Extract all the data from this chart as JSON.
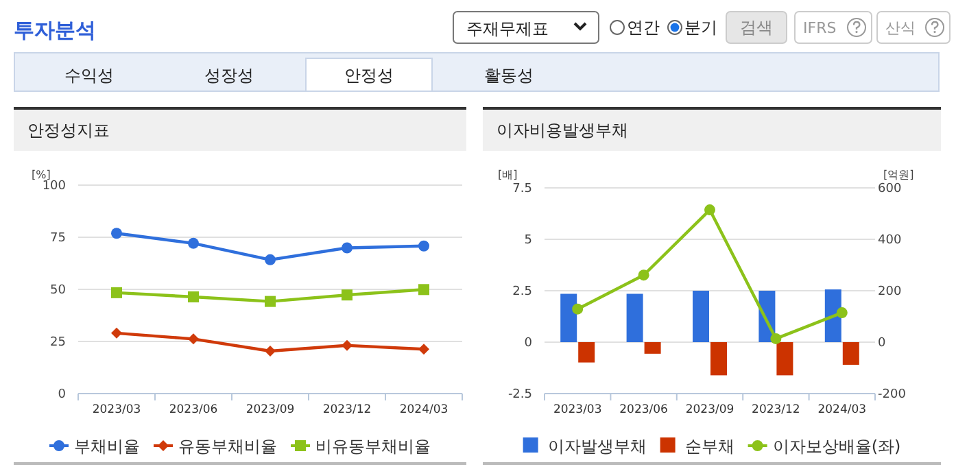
{
  "chart_data": [
    {
      "type": "other",
      "title": "투자분석",
      "annotations": [
        "주재무제표",
        "연간",
        "분기",
        "검색",
        "IFRS",
        "산식",
        "수익성",
        "성장성",
        "안정성",
        "활동성"
      ]
    },
    {
      "type": "line",
      "title": "안정성지표",
      "ylabel": "[%]",
      "categories": [
        "2023/03",
        "2023/06",
        "2023/09",
        "2023/12",
        "2024/03"
      ],
      "ylim": [
        0,
        100
      ],
      "yticks": [
        0,
        25,
        50,
        75,
        100
      ],
      "grid": "y",
      "legend": "bottom",
      "series": [
        {
          "name": "부채비율",
          "color": "#2f6fdc",
          "marker": "circle",
          "values": [
            76.9,
            72.1,
            64.2,
            69.9,
            70.8
          ]
        },
        {
          "name": "유동부채비율",
          "color": "#d03a0a",
          "marker": "diamond",
          "values": [
            29.0,
            26.2,
            20.4,
            23.1,
            21.3
          ]
        },
        {
          "name": "비유동부채비율",
          "color": "#8cc21a",
          "marker": "square",
          "values": [
            48.4,
            46.4,
            44.2,
            47.3,
            49.9
          ]
        }
      ]
    },
    {
      "type": "bar",
      "title": "이자비용발생부채",
      "ylabel": "[배]",
      "y2label": "[억원]",
      "categories": [
        "2023/03",
        "2023/06",
        "2023/09",
        "2023/12",
        "2024/03"
      ],
      "ylim": [
        -2.5,
        7.5
      ],
      "yticks": [
        -2.5,
        0,
        2.5,
        5,
        7.5
      ],
      "y2lim": [
        -200,
        600
      ],
      "y2ticks": [
        -200,
        0,
        200,
        400,
        600
      ],
      "grid": "y",
      "legend": "bottom",
      "series": [
        {
          "name": "이자발생부채",
          "color": "#2f6fdc",
          "axis": "y2",
          "values": [
            188,
            188,
            200,
            200,
            205
          ]
        },
        {
          "name": "순부채",
          "color": "#cc3300",
          "axis": "y2",
          "values": [
            -79,
            -45,
            -129,
            -129,
            -88
          ]
        },
        {
          "name": "이자보상배율(좌)",
          "type": "line",
          "color": "#8cc21a",
          "marker": "circle",
          "axis": "y",
          "values": [
            1.61,
            3.26,
            6.43,
            0.17,
            1.43
          ]
        }
      ]
    }
  ]
}
